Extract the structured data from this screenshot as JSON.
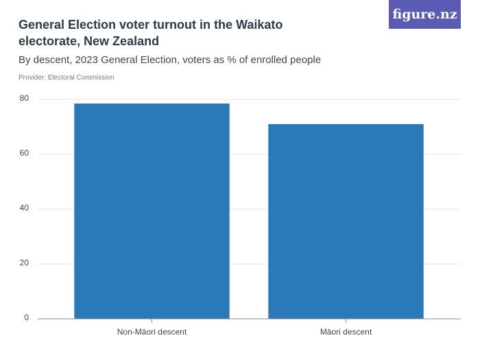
{
  "chart_data": {
    "type": "bar",
    "title": "General Election voter turnout in the Waikato electorate, New Zealand",
    "subtitle": "By descent, 2023 General Election, voters as % of enrolled people",
    "provider": "Provider: Electoral Commission",
    "logo": "figure.nz",
    "categories": [
      "Non-Māori descent",
      "Māori descent"
    ],
    "values": [
      78.5,
      71.0
    ],
    "color": "#2a7ab9",
    "ylim": [
      0,
      80
    ],
    "yticks": [
      0,
      20,
      40,
      60,
      80
    ],
    "grid": true
  }
}
